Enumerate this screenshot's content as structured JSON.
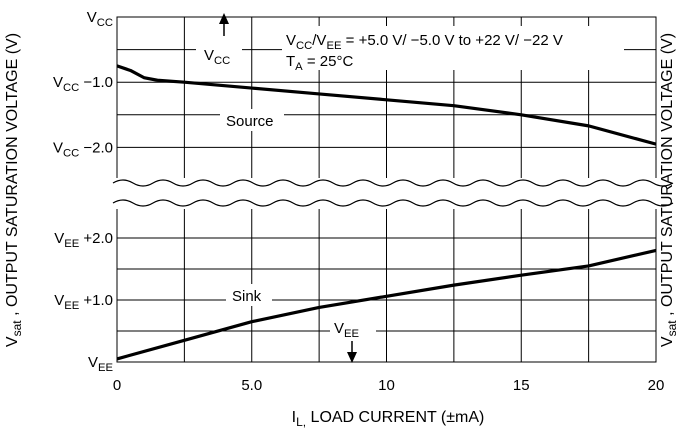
{
  "chart_data": {
    "type": "line",
    "title": "",
    "xlabel": "I<sub>L,</sub> LOAD CURRENT (±mA)",
    "ylabel": "V<sub>sat</sub> , OUTPUT SATURATION VOLTAGE (V)",
    "xlim": [
      0,
      20
    ],
    "x_ticks": [
      {
        "v": 0,
        "label": "0"
      },
      {
        "v": 5,
        "label": "5.0"
      },
      {
        "v": 10,
        "label": "10"
      },
      {
        "v": 15,
        "label": "15"
      },
      {
        "v": 20,
        "label": "20"
      }
    ],
    "upper_panel": {
      "ylim_below_vcc": [
        0,
        2.5
      ],
      "y_ticks": [
        {
          "v": 0,
          "label": "V<sub>CC</sub>"
        },
        {
          "v": 1.0,
          "label": "V<sub>CC</sub> −1.0"
        },
        {
          "v": 2.0,
          "label": "V<sub>CC</sub> −2.0"
        }
      ]
    },
    "lower_panel": {
      "ylim_above_vee": [
        0,
        2.5
      ],
      "y_ticks": [
        {
          "v": 2.0,
          "label": "V<sub>EE</sub> +2.0"
        },
        {
          "v": 1.0,
          "label": "V<sub>EE</sub> +1.0"
        },
        {
          "v": 0,
          "label": "V<sub>EE</sub>"
        }
      ]
    },
    "series": [
      {
        "name": "Source",
        "reference": "VCC",
        "x": [
          0,
          0.5,
          1,
          1.5,
          2.5,
          5,
          7.5,
          10,
          12.5,
          15,
          17.5,
          20
        ],
        "values": [
          0.75,
          0.82,
          0.93,
          0.97,
          1.0,
          1.09,
          1.18,
          1.27,
          1.36,
          1.5,
          1.67,
          1.95
        ]
      },
      {
        "name": "Sink",
        "reference": "VEE",
        "x": [
          0,
          2.5,
          5,
          7.5,
          10,
          12.5,
          15,
          17.5,
          20
        ],
        "values": [
          0.05,
          0.35,
          0.65,
          0.88,
          1.06,
          1.24,
          1.4,
          1.55,
          1.8
        ]
      }
    ],
    "annotations": {
      "conditions_line1": "V<sub>CC</sub>/V<sub>EE</sub> = +5.0 V/ −5.0 V to +22 V/ −22 V",
      "conditions_line2": "T<sub>A</sub> = 25°C",
      "vcc_marker": "V<sub>CC</sub>",
      "vee_marker": "V<sub>EE</sub>",
      "source_label": "Source",
      "sink_label": "Sink"
    },
    "grid": true,
    "axis_break": true
  }
}
